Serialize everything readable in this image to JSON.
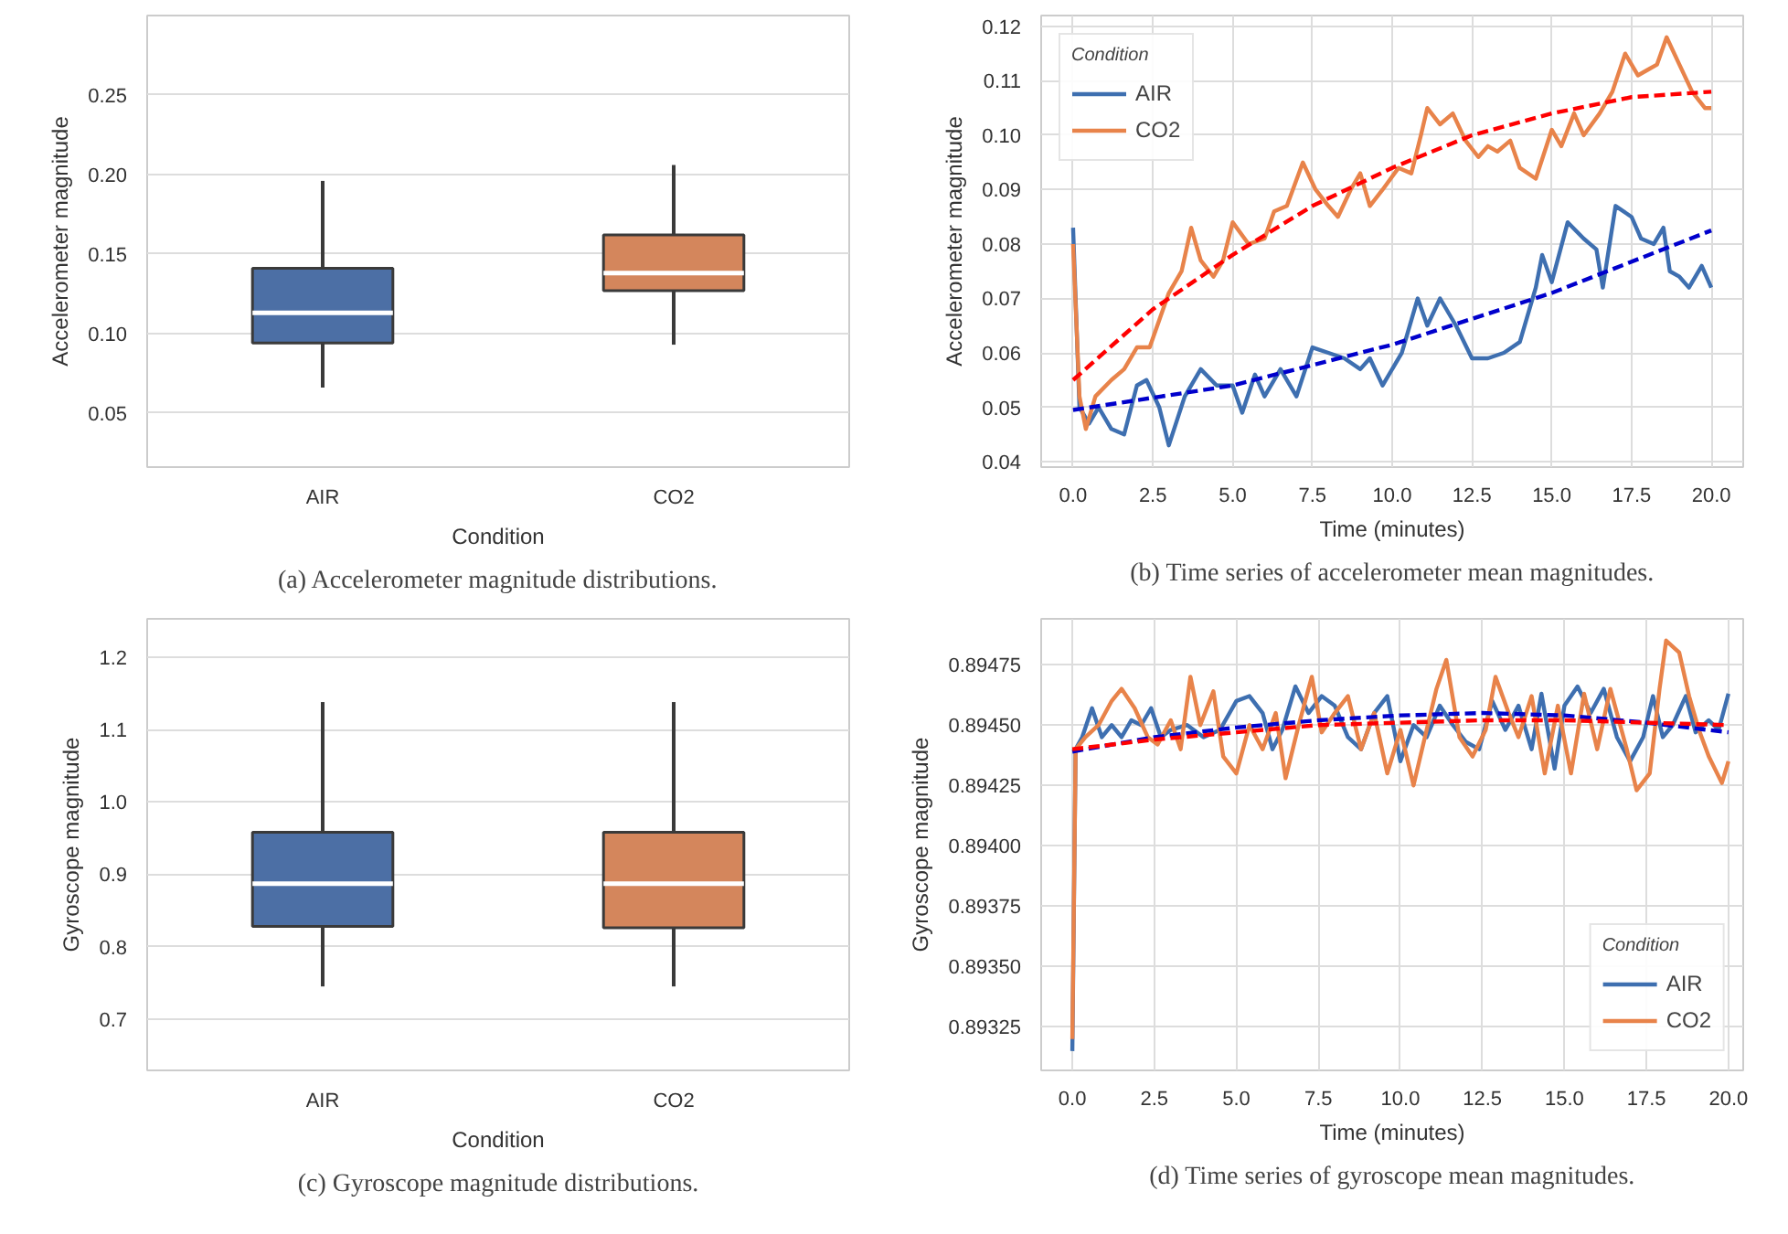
{
  "chart_data": [
    {
      "type": "box",
      "xlabel": "Condition",
      "ylabel": "Accelerometer magnitude",
      "annotations": [
        "(a) Accelerometer magnitude distributions."
      ],
      "categories": [
        "AIR",
        "CO2"
      ],
      "colors": [
        "#4c6fa5",
        "#d4865c"
      ],
      "boxes": [
        {
          "low": 0.066,
          "q1": 0.094,
          "median": 0.113,
          "q3": 0.141,
          "high": 0.196
        },
        {
          "low": 0.093,
          "q1": 0.127,
          "median": 0.138,
          "q3": 0.162,
          "high": 0.206
        }
      ],
      "ylim": [
        0.016,
        0.3
      ],
      "yticks": [
        {
          "value": 0.05,
          "label": "0.05"
        },
        {
          "value": 0.1,
          "label": "0.10"
        },
        {
          "value": 0.15,
          "label": "0.15"
        },
        {
          "value": 0.2,
          "label": "0.20"
        },
        {
          "value": 0.25,
          "label": "0.25"
        }
      ],
      "grid": "y"
    },
    {
      "type": "line",
      "xlabel": "Time (minutes)",
      "ylabel": "Accelerometer magnitude",
      "legend_title": "Condition",
      "legend": "top left",
      "annotations": [
        "(b) Time series of accelerometer mean magnitudes."
      ],
      "series": [
        {
          "name": "AIR",
          "color": "#3e6fb0",
          "x": [
            0,
            0.2,
            0.5,
            0.8,
            1.2,
            1.6,
            2.0,
            2.3,
            2.7,
            3.0,
            3.5,
            4.0,
            4.5,
            5.0,
            5.3,
            5.7,
            6.0,
            6.5,
            7.0,
            7.5,
            8.0,
            8.5,
            9.0,
            9.3,
            9.7,
            10.3,
            10.8,
            11.1,
            11.5,
            12.0,
            12.5,
            13.0,
            13.5,
            14.0,
            14.5,
            14.7,
            15.0,
            15.5,
            16.0,
            16.4,
            16.6,
            17.0,
            17.5,
            17.8,
            18.2,
            18.5,
            18.7,
            19.0,
            19.3,
            19.7,
            20.0
          ],
          "values": [
            0.083,
            0.05,
            0.047,
            0.05,
            0.046,
            0.045,
            0.054,
            0.055,
            0.05,
            0.043,
            0.052,
            0.057,
            0.054,
            0.054,
            0.049,
            0.056,
            0.052,
            0.057,
            0.052,
            0.061,
            0.06,
            0.059,
            0.057,
            0.059,
            0.054,
            0.06,
            0.07,
            0.065,
            0.07,
            0.065,
            0.059,
            0.059,
            0.06,
            0.062,
            0.072,
            0.078,
            0.073,
            0.084,
            0.081,
            0.079,
            0.072,
            0.087,
            0.085,
            0.081,
            0.08,
            0.083,
            0.075,
            0.074,
            0.072,
            0.076,
            0.072
          ]
        },
        {
          "name": "CO2",
          "color": "#e8834a",
          "x": [
            0,
            0.2,
            0.4,
            0.7,
            1.2,
            1.6,
            2.0,
            2.4,
            2.7,
            3.0,
            3.4,
            3.7,
            4.0,
            4.4,
            4.7,
            5.0,
            5.5,
            6.0,
            6.3,
            6.7,
            7.2,
            7.6,
            8.0,
            8.3,
            8.7,
            9.0,
            9.3,
            9.7,
            10.2,
            10.6,
            10.9,
            11.1,
            11.5,
            11.9,
            12.3,
            12.7,
            13.0,
            13.3,
            13.7,
            14.0,
            14.5,
            15.0,
            15.3,
            15.7,
            16.0,
            16.5,
            16.9,
            17.3,
            17.7,
            18.0,
            18.3,
            18.6,
            19.0,
            19.4,
            19.8,
            20.0
          ],
          "values": [
            0.08,
            0.052,
            0.046,
            0.052,
            0.055,
            0.057,
            0.061,
            0.061,
            0.066,
            0.071,
            0.075,
            0.083,
            0.077,
            0.074,
            0.077,
            0.084,
            0.08,
            0.081,
            0.086,
            0.087,
            0.095,
            0.09,
            0.087,
            0.085,
            0.09,
            0.093,
            0.087,
            0.09,
            0.094,
            0.093,
            0.1,
            0.105,
            0.102,
            0.104,
            0.099,
            0.096,
            0.098,
            0.097,
            0.099,
            0.094,
            0.092,
            0.101,
            0.098,
            0.104,
            0.1,
            0.104,
            0.108,
            0.115,
            0.111,
            0.112,
            0.113,
            0.118,
            0.113,
            0.108,
            0.105,
            0.105
          ]
        },
        {
          "color": "#0000cc",
          "line_style": "dashed",
          "x": [
            0,
            5,
            10,
            15,
            20
          ],
          "values": [
            0.0495,
            0.054,
            0.0615,
            0.071,
            0.0825
          ]
        },
        {
          "color": "#ff0000",
          "line_style": "dashed",
          "x": [
            0,
            2.5,
            5,
            7.5,
            10,
            12.5,
            15,
            17.5,
            20
          ],
          "values": [
            0.055,
            0.068,
            0.078,
            0.087,
            0.094,
            0.1,
            0.104,
            0.107,
            0.108
          ]
        }
      ],
      "xlim": [
        -1,
        21
      ],
      "xticks": [
        {
          "value": 0,
          "label": "0.0"
        },
        {
          "value": 2.5,
          "label": "2.5"
        },
        {
          "value": 5,
          "label": "5.0"
        },
        {
          "value": 7.5,
          "label": "7.5"
        },
        {
          "value": 10,
          "label": "10.0"
        },
        {
          "value": 12.5,
          "label": "12.5"
        },
        {
          "value": 15,
          "label": "15.0"
        },
        {
          "value": 17.5,
          "label": "17.5"
        },
        {
          "value": 20,
          "label": "20.0"
        }
      ],
      "ylim": [
        0.039,
        0.122
      ],
      "yticks": [
        {
          "value": 0.04,
          "label": "0.04"
        },
        {
          "value": 0.05,
          "label": "0.05"
        },
        {
          "value": 0.06,
          "label": "0.06"
        },
        {
          "value": 0.07,
          "label": "0.07"
        },
        {
          "value": 0.08,
          "label": "0.08"
        },
        {
          "value": 0.09,
          "label": "0.09"
        },
        {
          "value": 0.1,
          "label": "0.10"
        },
        {
          "value": 0.11,
          "label": "0.11"
        },
        {
          "value": 0.12,
          "label": "0.12"
        }
      ],
      "grid": true,
      "line_style": "solid"
    },
    {
      "type": "box",
      "xlabel": "Condition",
      "ylabel": "Gyroscope magnitude",
      "annotations": [
        "(c) Gyroscope magnitude distributions."
      ],
      "categories": [
        "AIR",
        "CO2"
      ],
      "colors": [
        "#4c6fa5",
        "#d4865c"
      ],
      "boxes": [
        {
          "low": 0.745,
          "q1": 0.828,
          "median": 0.887,
          "q3": 0.958,
          "high": 1.138
        },
        {
          "low": 0.745,
          "q1": 0.826,
          "median": 0.887,
          "q3": 0.958,
          "high": 1.138
        }
      ],
      "ylim": [
        0.629,
        1.253
      ],
      "yticks": [
        {
          "value": 0.7,
          "label": "0.7"
        },
        {
          "value": 0.8,
          "label": "0.8"
        },
        {
          "value": 0.9,
          "label": "0.9"
        },
        {
          "value": 1.0,
          "label": "1.0"
        },
        {
          "value": 1.1,
          "label": "1.1"
        },
        {
          "value": 1.2,
          "label": "1.2"
        }
      ],
      "grid": "y"
    },
    {
      "type": "line",
      "xlabel": "Time (minutes)",
      "ylabel": "Gyroscope magnitude",
      "legend_title": "Condition",
      "legend": "bottom right",
      "annotations": [
        "(d) Time series of gyroscope mean magnitudes."
      ],
      "series": [
        {
          "name": "AIR",
          "color": "#3e6fb0",
          "x": [
            0,
            0.1,
            0.3,
            0.6,
            0.9,
            1.2,
            1.5,
            1.8,
            2.1,
            2.4,
            2.7,
            3.0,
            3.5,
            4.0,
            4.5,
            5.0,
            5.4,
            5.8,
            6.1,
            6.4,
            6.8,
            7.2,
            7.6,
            8.0,
            8.4,
            8.8,
            9.2,
            9.6,
            10.0,
            10.4,
            10.8,
            11.2,
            11.6,
            12.0,
            12.4,
            12.8,
            13.2,
            13.6,
            14.0,
            14.3,
            14.7,
            15.0,
            15.4,
            15.8,
            16.2,
            16.6,
            17.0,
            17.4,
            17.7,
            18.0,
            18.3,
            18.7,
            19.0,
            19.4,
            19.7,
            20.0
          ],
          "values": [
            0.89315,
            0.8944,
            0.89445,
            0.89457,
            0.89445,
            0.8945,
            0.89445,
            0.89452,
            0.8945,
            0.89457,
            0.89445,
            0.89448,
            0.8945,
            0.89445,
            0.89448,
            0.8946,
            0.89462,
            0.89455,
            0.8944,
            0.89448,
            0.89466,
            0.89455,
            0.89462,
            0.89458,
            0.89445,
            0.8944,
            0.89455,
            0.89462,
            0.89435,
            0.8945,
            0.89445,
            0.89458,
            0.8945,
            0.89443,
            0.8944,
            0.8946,
            0.89448,
            0.89458,
            0.8944,
            0.89463,
            0.89432,
            0.89458,
            0.89466,
            0.89455,
            0.89465,
            0.89445,
            0.89435,
            0.89445,
            0.89462,
            0.89445,
            0.8945,
            0.89462,
            0.89447,
            0.89452,
            0.89448,
            0.89463
          ]
        },
        {
          "name": "CO2",
          "color": "#e8834a",
          "x": [
            0,
            0.1,
            0.4,
            0.8,
            1.2,
            1.5,
            1.9,
            2.3,
            2.6,
            3.0,
            3.3,
            3.6,
            3.9,
            4.3,
            4.6,
            5.0,
            5.4,
            5.8,
            6.2,
            6.5,
            6.9,
            7.3,
            7.6,
            8.0,
            8.4,
            8.8,
            9.2,
            9.6,
            10.0,
            10.4,
            10.8,
            11.1,
            11.4,
            11.8,
            12.2,
            12.6,
            12.9,
            13.3,
            13.6,
            14.0,
            14.4,
            14.8,
            15.2,
            15.6,
            16.0,
            16.4,
            16.9,
            17.2,
            17.6,
            17.9,
            18.1,
            18.5,
            18.8,
            19.1,
            19.4,
            19.8,
            20.0
          ],
          "values": [
            0.8932,
            0.8944,
            0.89445,
            0.8945,
            0.8946,
            0.89465,
            0.89457,
            0.89445,
            0.89442,
            0.89452,
            0.8944,
            0.8947,
            0.8945,
            0.89464,
            0.89437,
            0.8943,
            0.8945,
            0.8944,
            0.89455,
            0.89428,
            0.8945,
            0.8947,
            0.89447,
            0.89455,
            0.89462,
            0.8944,
            0.89455,
            0.8943,
            0.89448,
            0.89425,
            0.89448,
            0.89465,
            0.89477,
            0.89445,
            0.89437,
            0.89448,
            0.8947,
            0.89455,
            0.89445,
            0.89462,
            0.8943,
            0.89458,
            0.8943,
            0.89463,
            0.8944,
            0.89465,
            0.8944,
            0.89423,
            0.8943,
            0.89465,
            0.89485,
            0.8948,
            0.89462,
            0.89448,
            0.89437,
            0.89426,
            0.89435
          ]
        },
        {
          "color": "#0000cc",
          "line_style": "dashed",
          "x": [
            0,
            2.5,
            5,
            7.5,
            10,
            12.5,
            15,
            17.5,
            20
          ],
          "values": [
            0.89439,
            0.89445,
            0.89449,
            0.89452,
            0.89454,
            0.89455,
            0.89454,
            0.89451,
            0.89447
          ]
        },
        {
          "color": "#ff0000",
          "line_style": "dashed",
          "x": [
            0,
            2.5,
            5,
            7.5,
            10,
            12.5,
            15,
            17.5,
            20
          ],
          "values": [
            0.8944,
            0.89444,
            0.89447,
            0.8945,
            0.89451,
            0.89452,
            0.89452,
            0.89451,
            0.8945
          ]
        }
      ],
      "xlim": [
        -0.95,
        20.45
      ],
      "xticks": [
        {
          "value": 0,
          "label": "0.0"
        },
        {
          "value": 2.5,
          "label": "2.5"
        },
        {
          "value": 5,
          "label": "5.0"
        },
        {
          "value": 7.5,
          "label": "7.5"
        },
        {
          "value": 10,
          "label": "10.0"
        },
        {
          "value": 12.5,
          "label": "12.5"
        },
        {
          "value": 15,
          "label": "15.0"
        },
        {
          "value": 17.5,
          "label": "17.5"
        },
        {
          "value": 20,
          "label": "20.0"
        }
      ],
      "ylim": [
        0.89307,
        0.89494
      ],
      "yticks": [
        {
          "value": 0.89325,
          "label": "0.89325"
        },
        {
          "value": 0.8935,
          "label": "0.89350"
        },
        {
          "value": 0.89375,
          "label": "0.89375"
        },
        {
          "value": 0.894,
          "label": "0.89400"
        },
        {
          "value": 0.89425,
          "label": "0.89425"
        },
        {
          "value": 0.8945,
          "label": "0.89450"
        },
        {
          "value": 0.89475,
          "label": "0.89475"
        }
      ],
      "grid": true,
      "line_style": "solid"
    }
  ]
}
